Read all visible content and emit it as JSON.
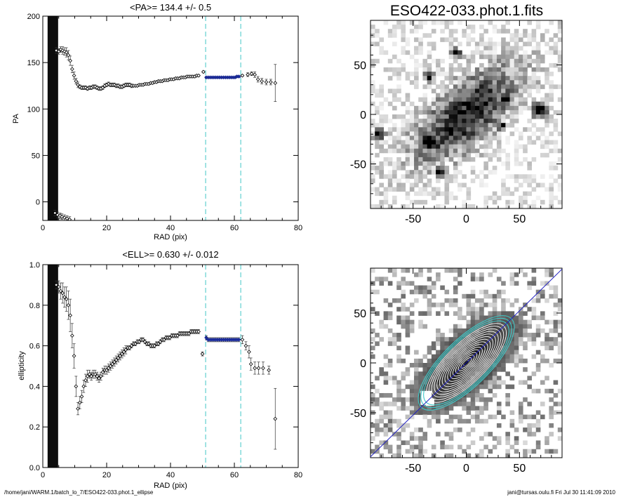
{
  "footer": {
    "path": "/home/jani/WARM.1/batch_lo_7/ESO422-033.phot.1_ellipse",
    "user_stamp": "jani@tursas.oulu.fi  Fri Jul 30 11:41:09 2010"
  },
  "chart_data": [
    {
      "type": "scatter",
      "title": "<PA>= 134.4 +/-   0.5",
      "xlabel": "RAD (pix)",
      "ylabel": "PA",
      "xlim": [
        0,
        80
      ],
      "ylim": [
        -20,
        200
      ],
      "xticks": [
        0,
        20,
        40,
        60,
        80
      ],
      "yticks": [
        0,
        50,
        100,
        150,
        200
      ],
      "shaded_band": [
        1.5,
        4.8
      ],
      "fit_range": [
        51,
        62
      ],
      "mean_value": 134.4,
      "points": [
        [
          4.2,
          163,
          3
        ],
        [
          5.0,
          162,
          3
        ],
        [
          5.6,
          164,
          3
        ],
        [
          6.2,
          163,
          4
        ],
        [
          6.8,
          162,
          4
        ],
        [
          7.4,
          161,
          5
        ],
        [
          8.0,
          158,
          5
        ],
        [
          8.6,
          152,
          5
        ],
        [
          9.2,
          143,
          4
        ],
        [
          9.8,
          136,
          4
        ],
        [
          10.4,
          130,
          3
        ],
        [
          11.0,
          126,
          3
        ],
        [
          11.6,
          124,
          2
        ],
        [
          12.2,
          123,
          2
        ],
        [
          12.8,
          123,
          2
        ],
        [
          13.4,
          123,
          2
        ],
        [
          14.0,
          122,
          2
        ],
        [
          14.6,
          123,
          2
        ],
        [
          15.2,
          123,
          2
        ],
        [
          15.8,
          124,
          2
        ],
        [
          16.4,
          124,
          2
        ],
        [
          17.0,
          123,
          2
        ],
        [
          17.6,
          122,
          2
        ],
        [
          18.2,
          122,
          2
        ],
        [
          18.8,
          123,
          2
        ],
        [
          19.4,
          125,
          2
        ],
        [
          20.0,
          126,
          2
        ],
        [
          20.6,
          127,
          2
        ],
        [
          21.2,
          126,
          2
        ],
        [
          21.8,
          126,
          2
        ],
        [
          22.4,
          126,
          2
        ],
        [
          23.0,
          125,
          2
        ],
        [
          23.6,
          125,
          2
        ],
        [
          24.2,
          124,
          2
        ],
        [
          24.8,
          124,
          2
        ],
        [
          25.4,
          125,
          2
        ],
        [
          26.0,
          126,
          2
        ],
        [
          26.6,
          126,
          2
        ],
        [
          27.2,
          126,
          2
        ],
        [
          27.8,
          125,
          2
        ],
        [
          28.4,
          125,
          1
        ],
        [
          29.0,
          125,
          1
        ],
        [
          29.6,
          125,
          1
        ],
        [
          30.2,
          126,
          1
        ],
        [
          30.8,
          126,
          1
        ],
        [
          31.4,
          126,
          1
        ],
        [
          32.0,
          127,
          1
        ],
        [
          32.6,
          127,
          1
        ],
        [
          33.2,
          127,
          1
        ],
        [
          33.8,
          128,
          1
        ],
        [
          34.4,
          128,
          1
        ],
        [
          35.0,
          129,
          1
        ],
        [
          35.6,
          129,
          1
        ],
        [
          36.2,
          130,
          1
        ],
        [
          36.8,
          130,
          1
        ],
        [
          37.4,
          130,
          1
        ],
        [
          38.0,
          131,
          1
        ],
        [
          38.6,
          131,
          1
        ],
        [
          39.2,
          131,
          1
        ],
        [
          39.8,
          132,
          1
        ],
        [
          40.4,
          132,
          1
        ],
        [
          41.0,
          132,
          1
        ],
        [
          41.6,
          133,
          1
        ],
        [
          42.2,
          133,
          1
        ],
        [
          42.8,
          133,
          1
        ],
        [
          43.4,
          134,
          1
        ],
        [
          44.0,
          134,
          1
        ],
        [
          44.6,
          134,
          1
        ],
        [
          45.2,
          135,
          1
        ],
        [
          45.8,
          135,
          1
        ],
        [
          46.4,
          135,
          1
        ],
        [
          47.0,
          135,
          1
        ],
        [
          47.6,
          135,
          1
        ],
        [
          48.2,
          136,
          1
        ],
        [
          48.8,
          136,
          1
        ],
        [
          50.3,
          140,
          1
        ],
        [
          51.2,
          134,
          1
        ],
        [
          51.8,
          134,
          1
        ],
        [
          52.4,
          134,
          1
        ],
        [
          53.0,
          134,
          1
        ],
        [
          53.6,
          134,
          1
        ],
        [
          54.2,
          134,
          1
        ],
        [
          54.8,
          134,
          1
        ],
        [
          55.4,
          134,
          1
        ],
        [
          56.0,
          134,
          1
        ],
        [
          56.6,
          134,
          1
        ],
        [
          57.2,
          134,
          1
        ],
        [
          57.8,
          134,
          1
        ],
        [
          58.4,
          134,
          1
        ],
        [
          59.0,
          134,
          1
        ],
        [
          59.6,
          134,
          1
        ],
        [
          60.2,
          134,
          1
        ],
        [
          60.8,
          135,
          1
        ],
        [
          61.4,
          135,
          1
        ],
        [
          62.5,
          136,
          1
        ],
        [
          64.2,
          137,
          2
        ],
        [
          65.4,
          138,
          2
        ],
        [
          66.4,
          137,
          3
        ],
        [
          67.4,
          132,
          3
        ],
        [
          68.6,
          130,
          3
        ],
        [
          70.0,
          129,
          3
        ],
        [
          71.4,
          129,
          3
        ],
        [
          72.8,
          128,
          20
        ]
      ],
      "lower_points": [
        [
          3.8,
          -12,
          3
        ],
        [
          4.6,
          -14,
          3
        ],
        [
          5.4,
          -15,
          3
        ],
        [
          6.0,
          -16,
          3
        ],
        [
          6.8,
          -17,
          3
        ],
        [
          7.6,
          -18,
          3
        ],
        [
          8.4,
          -19,
          3
        ]
      ]
    },
    {
      "type": "scatter",
      "title": "<ELL>= 0.630 +/-  0.012",
      "xlabel": "RAD (pix)",
      "ylabel": "ellipticity",
      "xlim": [
        0,
        80
      ],
      "ylim": [
        0.0,
        1.0
      ],
      "xticks": [
        0,
        20,
        40,
        60,
        80
      ],
      "yticks": [
        0.0,
        0.2,
        0.4,
        0.6,
        0.8,
        1.0
      ],
      "shaded_band": [
        1.5,
        4.8
      ],
      "fit_range": [
        51,
        62
      ],
      "mean_value": 0.63,
      "points": [
        [
          4.2,
          0.9,
          0.02
        ],
        [
          5.0,
          0.89,
          0.03
        ],
        [
          5.6,
          0.87,
          0.04
        ],
        [
          6.2,
          0.86,
          0.05
        ],
        [
          6.8,
          0.84,
          0.05
        ],
        [
          7.4,
          0.83,
          0.06
        ],
        [
          8.0,
          0.8,
          0.07
        ],
        [
          8.6,
          0.75,
          0.08
        ],
        [
          9.2,
          0.65,
          0.06
        ],
        [
          9.8,
          0.55,
          0.06
        ],
        [
          10.4,
          0.4,
          0.05
        ],
        [
          11.0,
          0.29,
          0.03
        ],
        [
          11.6,
          0.32,
          0.03
        ],
        [
          12.2,
          0.35,
          0.03
        ],
        [
          12.8,
          0.4,
          0.03
        ],
        [
          13.4,
          0.43,
          0.03
        ],
        [
          14.0,
          0.45,
          0.03
        ],
        [
          14.6,
          0.46,
          0.02
        ],
        [
          15.2,
          0.45,
          0.02
        ],
        [
          15.8,
          0.46,
          0.02
        ],
        [
          16.4,
          0.46,
          0.02
        ],
        [
          17.0,
          0.45,
          0.02
        ],
        [
          17.6,
          0.44,
          0.02
        ],
        [
          18.2,
          0.45,
          0.02
        ],
        [
          18.8,
          0.47,
          0.02
        ],
        [
          19.4,
          0.48,
          0.02
        ],
        [
          20.0,
          0.48,
          0.02
        ],
        [
          20.6,
          0.49,
          0.02
        ],
        [
          21.2,
          0.5,
          0.02
        ],
        [
          21.8,
          0.51,
          0.02
        ],
        [
          22.4,
          0.52,
          0.02
        ],
        [
          23.0,
          0.53,
          0.02
        ],
        [
          23.6,
          0.54,
          0.02
        ],
        [
          24.2,
          0.55,
          0.02
        ],
        [
          24.8,
          0.56,
          0.02
        ],
        [
          25.4,
          0.57,
          0.02
        ],
        [
          26.0,
          0.58,
          0.02
        ],
        [
          26.6,
          0.59,
          0.01
        ],
        [
          27.2,
          0.59,
          0.01
        ],
        [
          27.8,
          0.6,
          0.01
        ],
        [
          28.4,
          0.61,
          0.01
        ],
        [
          29.0,
          0.61,
          0.01
        ],
        [
          29.6,
          0.62,
          0.01
        ],
        [
          30.2,
          0.62,
          0.01
        ],
        [
          30.8,
          0.63,
          0.01
        ],
        [
          31.4,
          0.63,
          0.01
        ],
        [
          32.0,
          0.62,
          0.01
        ],
        [
          32.6,
          0.61,
          0.01
        ],
        [
          33.2,
          0.61,
          0.01
        ],
        [
          33.8,
          0.6,
          0.01
        ],
        [
          34.4,
          0.6,
          0.01
        ],
        [
          35.0,
          0.6,
          0.01
        ],
        [
          35.6,
          0.61,
          0.01
        ],
        [
          36.2,
          0.61,
          0.01
        ],
        [
          36.8,
          0.62,
          0.01
        ],
        [
          37.4,
          0.63,
          0.01
        ],
        [
          38.0,
          0.63,
          0.01
        ],
        [
          38.6,
          0.64,
          0.01
        ],
        [
          39.2,
          0.64,
          0.01
        ],
        [
          39.8,
          0.64,
          0.01
        ],
        [
          40.4,
          0.65,
          0.01
        ],
        [
          41.0,
          0.65,
          0.01
        ],
        [
          41.6,
          0.65,
          0.01
        ],
        [
          42.2,
          0.65,
          0.01
        ],
        [
          42.8,
          0.66,
          0.01
        ],
        [
          43.4,
          0.66,
          0.01
        ],
        [
          44.0,
          0.66,
          0.01
        ],
        [
          44.6,
          0.66,
          0.01
        ],
        [
          45.2,
          0.66,
          0.01
        ],
        [
          45.8,
          0.66,
          0.01
        ],
        [
          46.4,
          0.67,
          0.01
        ],
        [
          47.0,
          0.67,
          0.01
        ],
        [
          47.6,
          0.67,
          0.01
        ],
        [
          48.2,
          0.67,
          0.01
        ],
        [
          48.8,
          0.67,
          0.01
        ],
        [
          50.0,
          0.56,
          0.01
        ],
        [
          51.2,
          0.64,
          0.01
        ],
        [
          51.8,
          0.63,
          0.01
        ],
        [
          52.4,
          0.63,
          0.01
        ],
        [
          53.0,
          0.63,
          0.01
        ],
        [
          53.6,
          0.63,
          0.01
        ],
        [
          54.2,
          0.63,
          0.01
        ],
        [
          54.8,
          0.63,
          0.01
        ],
        [
          55.4,
          0.63,
          0.01
        ],
        [
          56.0,
          0.63,
          0.01
        ],
        [
          56.6,
          0.63,
          0.01
        ],
        [
          57.2,
          0.63,
          0.01
        ],
        [
          57.8,
          0.63,
          0.01
        ],
        [
          58.4,
          0.63,
          0.01
        ],
        [
          59.0,
          0.63,
          0.01
        ],
        [
          59.6,
          0.63,
          0.01
        ],
        [
          60.2,
          0.63,
          0.01
        ],
        [
          60.8,
          0.63,
          0.01
        ],
        [
          61.4,
          0.63,
          0.01
        ],
        [
          62.5,
          0.63,
          0.02
        ],
        [
          63.6,
          0.6,
          0.02
        ],
        [
          64.6,
          0.57,
          0.03
        ],
        [
          65.2,
          0.51,
          0.03
        ],
        [
          66.4,
          0.49,
          0.03
        ],
        [
          67.6,
          0.49,
          0.03
        ],
        [
          69.0,
          0.49,
          0.03
        ],
        [
          70.8,
          0.48,
          0.02
        ],
        [
          72.8,
          0.24,
          0.15
        ]
      ],
      "lower_points": []
    }
  ],
  "image_panels": {
    "title": "ESO422-033.phot.1.fits",
    "xlim": [
      -90,
      90
    ],
    "ylim": [
      -95,
      95
    ],
    "xticks": [
      -50,
      0,
      50
    ],
    "yticks": [
      -50,
      0,
      50
    ],
    "fit_line_angle": 44.4,
    "colors": {
      "fit_line": "#2020c0",
      "outer_contour": "#40c8c8",
      "inner_contour": "#ffffff",
      "fit_points": "#1a2a9a",
      "range_lines": "#60d0d0"
    }
  }
}
